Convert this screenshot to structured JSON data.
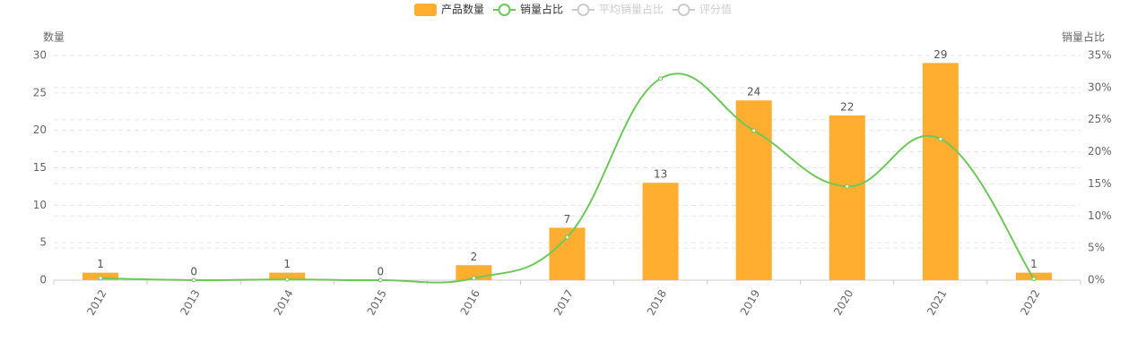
{
  "chart_data": {
    "type": "bar-line",
    "categories": [
      "2012",
      "2013",
      "2014",
      "2015",
      "2016",
      "2017",
      "2018",
      "2019",
      "2020",
      "2021",
      "2022"
    ],
    "series": [
      {
        "name": "产品数量",
        "color": "#ffae2f",
        "type": "bar",
        "values": [
          1,
          0,
          1,
          0,
          2,
          7,
          13,
          24,
          22,
          29,
          1
        ]
      },
      {
        "name": "销量占比",
        "color": "#6dc85a",
        "type": "line",
        "axis": "y2",
        "smooth": true,
        "values": [
          0.3,
          0,
          0.1,
          0,
          0.3,
          6.7,
          31.4,
          23.3,
          14.6,
          22.0,
          0.2
        ]
      }
    ],
    "legend_inactive": [
      "平均销量占比",
      "评分值"
    ],
    "inactive_color": "#cccccc",
    "ylabel": "数量",
    "y2label": "销量占比",
    "ylim": [
      0,
      30
    ],
    "yticks": [
      0,
      5,
      10,
      15,
      20,
      25,
      30
    ],
    "y2lim": [
      0,
      35
    ],
    "y2ticks": [
      {
        "value": 0,
        "label": "0%"
      },
      {
        "value": 5,
        "label": "5%"
      },
      {
        "value": 10,
        "label": "10%"
      },
      {
        "value": 15,
        "label": "15%"
      },
      {
        "value": 20,
        "label": "20%"
      },
      {
        "value": 25,
        "label": "25%"
      },
      {
        "value": 30,
        "label": "30%"
      },
      {
        "value": 35,
        "label": "35%"
      }
    ],
    "grid": true,
    "legend_position": "top"
  }
}
